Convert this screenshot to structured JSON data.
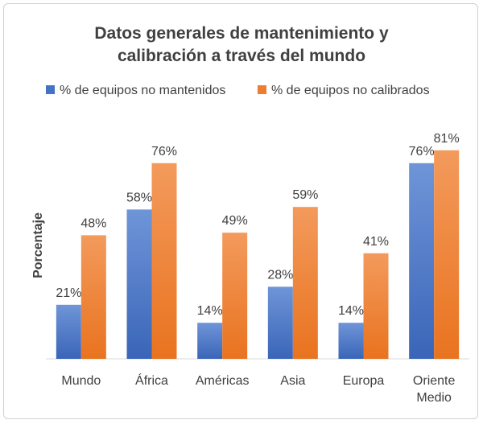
{
  "chart_data": {
    "type": "bar",
    "title_lines": [
      "Datos generales de mantenimiento y",
      "calibración a través del mundo"
    ],
    "ylabel": "Porcentaje",
    "xlabel": "",
    "categories": [
      [
        "Mundo"
      ],
      [
        "África"
      ],
      [
        "Américas"
      ],
      [
        "Asia"
      ],
      [
        "Europa"
      ],
      [
        "Oriente",
        "Medio"
      ]
    ],
    "ylim": [
      0,
      90
    ],
    "grid": false,
    "legend_position": "top",
    "series": [
      {
        "name": "% de equipos no mantenidos",
        "color": "#4472C4",
        "values": [
          21,
          58,
          14,
          28,
          14,
          76
        ],
        "labels": [
          "21%",
          "58%",
          "14%",
          "28%",
          "14%",
          "76%"
        ]
      },
      {
        "name": "% de equipos no calibrados",
        "color": "#ED7D31",
        "values": [
          48,
          76,
          49,
          59,
          41,
          81
        ],
        "labels": [
          "48%",
          "76%",
          "49%",
          "59%",
          "41%",
          "81%"
        ]
      }
    ]
  }
}
